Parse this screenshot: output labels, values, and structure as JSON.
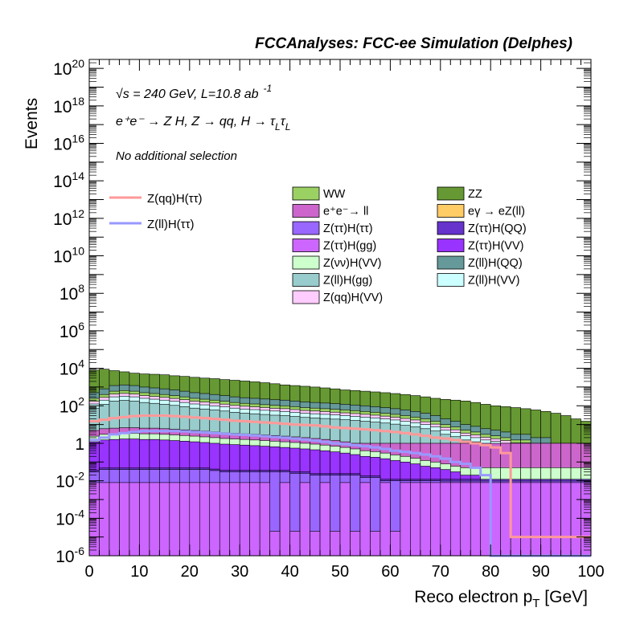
{
  "header": "FCCAnalyses: FCC-ee Simulation (Delphes)",
  "annotations": {
    "sqrt_s": "s = 240 GeV, L=10.8 ab",
    "lumi_exp": "-1",
    "process": "e⁺e⁻ → Z H, Z → qq, H → τ",
    "sub_L": "L",
    "selection": "No additional selection"
  },
  "chart_data": {
    "type": "area",
    "xlabel": "Reco electron p",
    "xlabel_sub": "T",
    "xlabel_unit": " [GeV]",
    "ylabel": "Events",
    "xlim": [
      0,
      100
    ],
    "ylim": [
      1e-06,
      3e+20
    ],
    "yscale": "log",
    "x_ticks": [
      0,
      10,
      20,
      30,
      40,
      50,
      60,
      70,
      80,
      90,
      100
    ],
    "y_ticks": [
      {
        "base": "10",
        "exp": "-6",
        "value": 1e-06
      },
      {
        "base": "10",
        "exp": "-4",
        "value": 0.0001
      },
      {
        "base": "10",
        "exp": "-2",
        "value": 0.01
      },
      {
        "base": "1",
        "exp": "",
        "value": 1
      },
      {
        "base": "10",
        "exp": "2",
        "value": 100.0
      },
      {
        "base": "10",
        "exp": "4",
        "value": 10000.0
      },
      {
        "base": "10",
        "exp": "6",
        "value": 1000000.0
      },
      {
        "base": "10",
        "exp": "8",
        "value": 100000000.0
      },
      {
        "base": "10",
        "exp": "10",
        "value": 10000000000.0
      },
      {
        "base": "10",
        "exp": "12",
        "value": 1000000000000.0
      },
      {
        "base": "10",
        "exp": "14",
        "value": 100000000000000.0
      },
      {
        "base": "10",
        "exp": "16",
        "value": 1e+16
      },
      {
        "base": "10",
        "exp": "18",
        "value": 1e+18
      },
      {
        "base": "10",
        "exp": "20",
        "value": 1e+20
      }
    ],
    "bin_width": 2,
    "stack_order": [
      "Z(qq)H(VV)",
      "Z(ll)H(gg)",
      "Z(νν)H(VV)",
      "Z(ττ)H(gg)",
      "Z(ττ)H(ττ)",
      "e⁺e⁻→ ll",
      "WW",
      "Z(ll)H(VV)",
      "Z(ll)H(QQ)",
      "Z(ττ)H(VV)",
      "Z(ττ)H(QQ)",
      "eγ → eZ(ll)",
      "ZZ"
    ],
    "stack_edges": [
      [
        8e-05,
        0.001,
        0.005,
        0.02,
        0.05,
        0.15,
        0.35,
        0.9,
        2.2,
        4,
        6,
        15,
        30
      ],
      [
        8e-05,
        0.001,
        0.005,
        0.02,
        0.05,
        0.15,
        0.35,
        0.9,
        2.2,
        4,
        6,
        15,
        30
      ],
      [
        8e-05,
        0.001,
        0.005,
        0.02,
        0.05,
        0.15,
        0.35,
        0.9,
        2.2,
        4,
        6,
        15,
        30
      ],
      [
        8e-05,
        0.001,
        0.005,
        0.02,
        0.05,
        0.15,
        0.35,
        0.9,
        2.2,
        4,
        6,
        15,
        30
      ],
      [
        8e-05,
        0.001,
        0.005,
        0.02,
        0.05,
        0.15,
        0.35,
        0.9,
        2.2,
        4,
        6,
        15,
        30
      ],
      [
        8e-05,
        0.001,
        0.005,
        0.02,
        0.05,
        0.15,
        0.35,
        0.9,
        2.2,
        4,
        6,
        15,
        30
      ]
    ],
    "series": [
      {
        "name": "WW",
        "color": "#9bd163"
      },
      {
        "name": "ZZ",
        "color": "#669933"
      },
      {
        "name": "e⁺e⁻→ ll",
        "color": "#cc66cc"
      },
      {
        "name": "eγ → eZ(ll)",
        "color": "#ffcc66"
      },
      {
        "name": "Z(ττ)H(ττ)",
        "color": "#9966ff"
      },
      {
        "name": "Z(ττ)H(QQ)",
        "color": "#6633cc"
      },
      {
        "name": "Z(ττ)H(gg)",
        "color": "#cc66ff"
      },
      {
        "name": "Z(ττ)H(VV)",
        "color": "#9933ff"
      },
      {
        "name": "Z(νν)H(VV)",
        "color": "#ccffcc"
      },
      {
        "name": "Z(ll)H(QQ)",
        "color": "#669999"
      },
      {
        "name": "Z(ll)H(gg)",
        "color": "#99cccc"
      },
      {
        "name": "Z(ll)H(VV)",
        "color": "#ccffff"
      },
      {
        "name": "Z(qq)H(VV)",
        "color": "#ffccff"
      }
    ],
    "overlays": [
      {
        "name": "Z(qq)H(ττ)",
        "color": "#ff9999"
      },
      {
        "name": "Z(ll)H(ττ)",
        "color": "#9999ff"
      }
    ],
    "totals": {
      "ZZ": [
        8000,
        9000,
        7500,
        6500,
        5500,
        5000,
        4800,
        4500,
        4000,
        3700,
        3300,
        3000,
        2800,
        2500,
        2300,
        2100,
        1900,
        1700,
        1500,
        1300,
        1200,
        1100,
        1000,
        900,
        800,
        700,
        650,
        600,
        550,
        500,
        450,
        400,
        350,
        300,
        250,
        220,
        200,
        180,
        150,
        120,
        100,
        90,
        80,
        70,
        60,
        50,
        40,
        30,
        20,
        15
      ],
      "llQQ": [
        500,
        800,
        1200,
        1300,
        1200,
        1000,
        900,
        800,
        700,
        600,
        500,
        450,
        400,
        350,
        300,
        270,
        250,
        230,
        210,
        200,
        180,
        160,
        150,
        140,
        130,
        120,
        110,
        100,
        90,
        80,
        70,
        60,
        50,
        40,
        30,
        20,
        15,
        10,
        8,
        6,
        5,
        4,
        3,
        3,
        2,
        2,
        1,
        1,
        1,
        1
      ],
      "ZttVV": [
        1.2,
        1.5,
        1.6,
        1.7,
        1.7,
        1.6,
        1.6,
        1.5,
        1.4,
        1.3,
        1.2,
        1.1,
        1,
        0.9,
        0.85,
        0.8,
        0.75,
        0.7,
        0.65,
        0.6,
        0.55,
        0.5,
        0.45,
        0.4,
        0.35,
        0.3,
        0.25,
        0.2,
        0.18,
        0.15,
        0.12,
        0.1,
        0.08,
        0.06,
        0.05,
        0.04,
        0.03,
        0.02,
        0.02,
        0.01,
        0.01,
        0.01,
        0.01,
        0.01,
        0.01,
        0.01,
        0.01,
        0.01,
        0.01,
        0.01
      ],
      "ZttQQ": [
        0.03,
        0.04,
        0.04,
        0.04,
        0.04,
        0.04,
        0.04,
        0.04,
        0.04,
        0.04,
        0.04,
        0.04,
        0.035,
        0.03,
        0.03,
        0.03,
        0.03,
        0.03,
        0.03,
        0.03,
        0.025,
        0.025,
        0.02,
        0.02,
        0.02,
        0.02,
        0.02,
        0.015,
        0.015,
        0.01,
        0.01,
        0.01,
        0.01,
        0.01,
        0.01,
        0.005,
        0.005,
        0.005,
        0.005,
        0.005,
        0.005,
        0.005,
        0.005,
        0.005,
        0.005,
        0.005,
        0.005,
        0.005,
        0.005,
        0.005
      ],
      "ZttGG": [
        0.008,
        0.008,
        0.008,
        0.008,
        0.008,
        0.008,
        0.008,
        0.008,
        0.008,
        0.008,
        0.008,
        0.008,
        0.008,
        0.008,
        0.008,
        0.008,
        0.008,
        0.008,
        2e-05,
        0.008,
        2e-05,
        0.008,
        2e-05,
        0.008,
        2e-05,
        0.008,
        2e-05,
        0.008,
        2e-05,
        0.008,
        2e-05,
        0.008,
        0.008,
        0.008,
        0.008,
        0.008,
        0.008,
        0.008,
        0.008,
        0.008,
        0.008,
        0.008,
        0.008,
        0.008,
        0.008,
        0.008,
        0.008,
        0.008,
        0.008,
        0.008
      ],
      "Zll": [
        0.05,
        0.05,
        0.05,
        0.05,
        0.05,
        0.05,
        0.05,
        0.05,
        0.05,
        0.05,
        0.05,
        0.05,
        0.05,
        0.05,
        0.05,
        0.05,
        0.05,
        0.05,
        0.05,
        0.05,
        0.05,
        0.05,
        0.05,
        0.05,
        0.05,
        0.05,
        0.05,
        0.05,
        0.05,
        0.05,
        0.05,
        0.05,
        0.05,
        0.05,
        0.05,
        0.05,
        0.05,
        0.05,
        0.05,
        0.05,
        0.05,
        0.05,
        0.05,
        0.05,
        0.05,
        0.05,
        0.05,
        0.05,
        0.05,
        0.05
      ]
    },
    "overlay_values": {
      "Z(qq)H(ττ)": [
        15,
        18,
        22,
        25,
        28,
        30,
        30,
        30,
        28,
        26,
        24,
        22,
        20,
        18,
        16,
        15,
        14,
        13,
        12,
        11,
        10,
        9.5,
        9,
        8,
        7,
        6.5,
        6,
        5.5,
        5,
        4.5,
        4,
        3.5,
        3,
        2.5,
        2,
        1.8,
        1.5,
        1.2,
        1,
        0.8,
        0.6,
        0.3,
        1e-05,
        1e-05,
        1e-05,
        1e-05,
        1e-05,
        1e-05,
        1e-05,
        1e-05
      ],
      "Z(ll)H(ττ)": [
        1.5,
        2,
        3,
        3.5,
        4,
        4.5,
        4.5,
        4.5,
        4.5,
        4.3,
        4,
        3.8,
        3.5,
        3.2,
        3,
        2.8,
        2.6,
        2.4,
        2.2,
        2,
        1.8,
        1.6,
        1.4,
        1.2,
        1,
        0.9,
        0.8,
        0.7,
        0.6,
        0.5,
        0.4,
        0.35,
        0.3,
        0.25,
        0.2,
        0.15,
        0.1,
        0.08,
        0.05,
        0.02,
        1e-06,
        1e-06,
        1e-06,
        1e-06,
        1e-06,
        1e-06,
        1e-06,
        1e-06,
        1e-06,
        1e-06
      ]
    }
  }
}
